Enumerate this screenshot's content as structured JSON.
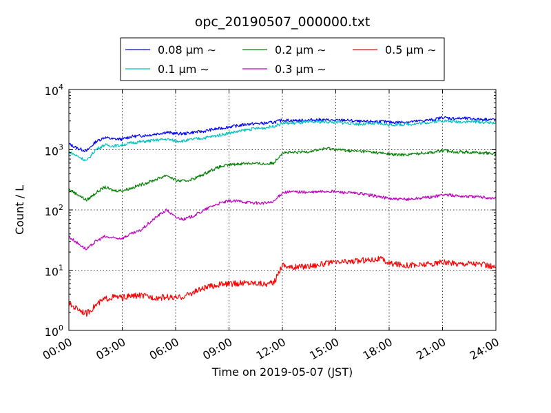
{
  "chart_data": {
    "type": "line",
    "title": "opc_20190507_000000.txt",
    "xlabel": "Time on 2019-05-07 (JST)",
    "ylabel": "Count / L",
    "yscale": "log",
    "ylim": [
      1,
      10000
    ],
    "xlim": [
      "00:00",
      "24:00"
    ],
    "grid": true,
    "legend_position": "top-center",
    "x_ticks": [
      "00:00",
      "03:00",
      "06:00",
      "09:00",
      "12:00",
      "15:00",
      "18:00",
      "21:00",
      "24:00"
    ],
    "y_ticks": [
      {
        "value": 1,
        "base": "10",
        "exp": "0"
      },
      {
        "value": 10,
        "base": "10",
        "exp": "1"
      },
      {
        "value": 100,
        "base": "10",
        "exp": "2"
      },
      {
        "value": 1000,
        "base": "10",
        "exp": "3"
      },
      {
        "value": 10000,
        "base": "10",
        "exp": "4"
      }
    ],
    "x": [
      "00:00",
      "00:30",
      "01:00",
      "01:30",
      "02:00",
      "02:30",
      "03:00",
      "03:30",
      "04:00",
      "04:30",
      "05:00",
      "05:30",
      "06:00",
      "06:30",
      "07:00",
      "07:30",
      "08:00",
      "08:30",
      "09:00",
      "09:30",
      "10:00",
      "10:30",
      "11:00",
      "11:30",
      "12:00",
      "12:30",
      "13:00",
      "13:30",
      "14:00",
      "14:30",
      "15:00",
      "15:30",
      "16:00",
      "16:30",
      "17:00",
      "17:30",
      "18:00",
      "18:30",
      "19:00",
      "19:30",
      "20:00",
      "20:30",
      "21:00",
      "21:30",
      "22:00",
      "22:30",
      "23:00",
      "23:30",
      "24:00"
    ],
    "series": [
      {
        "name": "0.08 µm ∼",
        "color": "#0000ff",
        "values": [
          1250,
          1050,
          950,
          1350,
          1600,
          1500,
          1500,
          1650,
          1700,
          1750,
          1850,
          1950,
          1850,
          1850,
          1950,
          2000,
          2150,
          2250,
          2400,
          2500,
          2650,
          2700,
          2750,
          2850,
          3100,
          3050,
          3050,
          3100,
          3150,
          3100,
          3050,
          3100,
          3000,
          2900,
          2950,
          2950,
          2850,
          2850,
          2900,
          2950,
          3050,
          3150,
          3450,
          3300,
          3300,
          3300,
          3200,
          3200,
          3150
        ]
      },
      {
        "name": "0.1 µm ∼",
        "color": "#00bfbf",
        "values": [
          920,
          780,
          650,
          1000,
          1200,
          1150,
          1200,
          1300,
          1350,
          1400,
          1450,
          1500,
          1400,
          1400,
          1500,
          1550,
          1650,
          1750,
          1900,
          2000,
          2150,
          2250,
          2300,
          2450,
          2750,
          2750,
          2800,
          2850,
          2900,
          2900,
          2850,
          2800,
          2700,
          2650,
          2700,
          2700,
          2600,
          2600,
          2650,
          2700,
          2800,
          2900,
          3050,
          2950,
          2900,
          2950,
          2900,
          2850,
          2800
        ]
      },
      {
        "name": "0.2 µm ∼",
        "color": "#008000",
        "values": [
          220,
          180,
          145,
          190,
          240,
          210,
          210,
          230,
          260,
          290,
          330,
          380,
          310,
          300,
          330,
          380,
          460,
          520,
          560,
          580,
          600,
          590,
          580,
          600,
          900,
          890,
          910,
          940,
          1000,
          1050,
          1020,
          980,
          950,
          940,
          920,
          880,
          850,
          820,
          830,
          860,
          890,
          910,
          970,
          940,
          920,
          910,
          890,
          880,
          860
        ]
      },
      {
        "name": "0.3 µm ∼",
        "color": "#bf00bf",
        "values": [
          36,
          28,
          22,
          30,
          36,
          34,
          34,
          40,
          45,
          60,
          80,
          100,
          75,
          70,
          80,
          95,
          115,
          130,
          140,
          140,
          135,
          130,
          130,
          135,
          195,
          200,
          200,
          195,
          200,
          205,
          200,
          195,
          190,
          185,
          175,
          165,
          155,
          150,
          150,
          155,
          160,
          165,
          180,
          175,
          170,
          168,
          165,
          160,
          155
        ]
      },
      {
        "name": "0.5 µm ∼",
        "color": "#ff0000",
        "values": [
          2.7,
          2.3,
          1.9,
          2.6,
          3.3,
          3.6,
          3.5,
          3.7,
          3.8,
          3.6,
          3.5,
          3.6,
          3.4,
          3.7,
          4.3,
          4.9,
          5.4,
          5.8,
          5.9,
          6.0,
          6.2,
          6.2,
          5.9,
          6.0,
          12.5,
          11.0,
          11.5,
          11.8,
          12.3,
          13.0,
          13.2,
          13.8,
          14.0,
          14.5,
          15.0,
          15.5,
          13.0,
          12.5,
          12.2,
          12.0,
          12.5,
          12.8,
          13.5,
          13.0,
          12.8,
          13.2,
          12.8,
          12.0,
          11.0
        ]
      }
    ]
  }
}
